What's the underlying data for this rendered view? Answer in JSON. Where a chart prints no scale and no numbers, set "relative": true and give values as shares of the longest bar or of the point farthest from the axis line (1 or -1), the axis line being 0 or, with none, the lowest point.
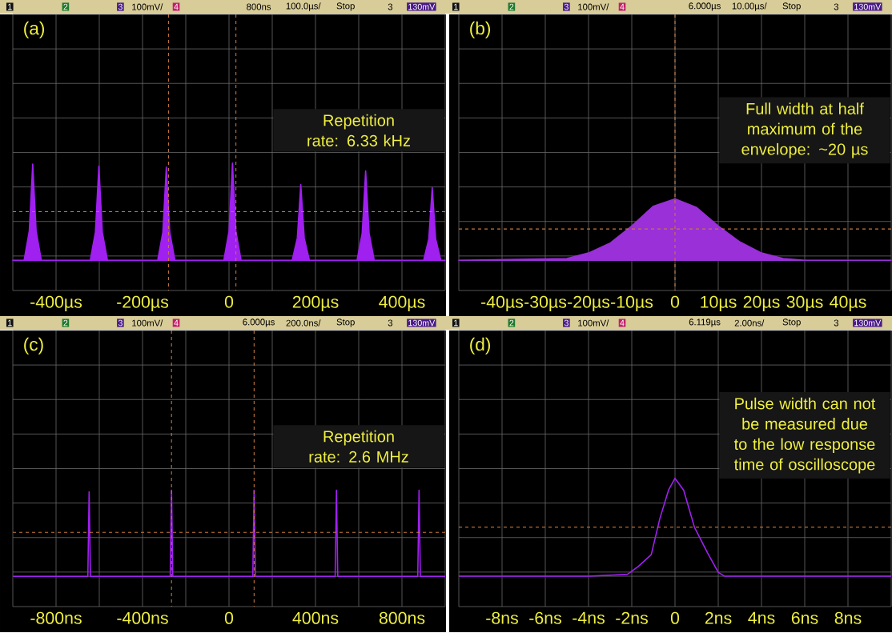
{
  "chart_data": [
    {
      "type": "area",
      "title": "(a)",
      "color": "#a020f0",
      "relative": true,
      "grid": true,
      "x": [
        -500,
        -474,
        -462,
        -454,
        -446,
        -434,
        -321,
        -309,
        -301,
        -293,
        -281,
        -165,
        -153,
        -145,
        -137,
        -125,
        -12,
        0,
        8,
        16,
        28,
        146,
        158,
        166,
        174,
        186,
        296,
        308,
        316,
        324,
        336,
        450,
        462,
        470,
        478,
        490,
        500
      ],
      "values": [
        0,
        0,
        0.3,
        0.99,
        0.3,
        0,
        0,
        0.29,
        0.97,
        0.29,
        0,
        0,
        0.29,
        0.96,
        0.29,
        0,
        0,
        0.3,
        1,
        0.3,
        0,
        0,
        0.23,
        0.78,
        0.23,
        0,
        0,
        0.28,
        0.92,
        0.28,
        0,
        0,
        0.22,
        0.75,
        0.22,
        0,
        0
      ],
      "xlim": [
        -500,
        500
      ],
      "xticks": [
        {
          "value": -400,
          "label": "-400µs"
        },
        {
          "value": -200,
          "label": "-200µs"
        },
        0,
        {
          "value": 200,
          "label": "200µs"
        },
        {
          "value": 400,
          "label": "400µs"
        }
      ],
      "ref_lines": [
        {
          "axis": "y",
          "value": 0.5,
          "color": "#c8783c",
          "line_style": "dashed"
        },
        {
          "axis": "x",
          "value": -140,
          "color": "#c8783c",
          "line_style": "dashed"
        },
        {
          "axis": "x",
          "value": 16,
          "color": "#c8783c",
          "line_style": "dashed"
        }
      ],
      "annotations": [
        "Repetition rate: 6.33 kHz",
        "1",
        "2",
        "3",
        "100mV/",
        "4",
        "800ns",
        "100.0µs/",
        "Stop",
        "3",
        "130mV"
      ]
    },
    {
      "type": "area",
      "title": "(b)",
      "color": "#9a30d8",
      "relative": true,
      "grid": true,
      "x": [
        -50,
        -25,
        -20,
        -15,
        -10,
        -5,
        0,
        5,
        10,
        15,
        20,
        25,
        30,
        50
      ],
      "values": [
        0,
        0.03,
        0.12,
        0.28,
        0.56,
        0.88,
        1,
        0.86,
        0.56,
        0.3,
        0.12,
        0.03,
        0,
        0
      ],
      "xlim": [
        -50,
        50
      ],
      "xticks": [
        {
          "value": -40,
          "label": "-40µs"
        },
        {
          "value": -30,
          "label": "-30µs"
        },
        {
          "value": -20,
          "label": "-20µs"
        },
        {
          "value": -10,
          "label": "-10µs"
        },
        0,
        {
          "value": 10,
          "label": "10µs"
        },
        {
          "value": 20,
          "label": "20µs"
        },
        {
          "value": 30,
          "label": "30µs"
        },
        {
          "value": 40,
          "label": "40µs"
        }
      ],
      "ref_lines": [
        {
          "axis": "y",
          "value": 0.51,
          "color": "#c8783c",
          "line_style": "dashed"
        },
        {
          "axis": "x",
          "value": 0,
          "color": "#c8783c",
          "line_style": "dashed"
        }
      ],
      "annotations": [
        "Full width at half maximum of the envelope: ~20 µs",
        "1",
        "2",
        "3",
        "100mV/",
        "4",
        "6.000µs",
        "10.00µs/",
        "Stop",
        "3",
        "130mV"
      ]
    },
    {
      "type": "line",
      "title": "(c)",
      "color": "#a020f0",
      "relative": true,
      "grid": true,
      "x": [
        -1000,
        -653,
        -647,
        -641,
        -272,
        -266,
        -260,
        110,
        116,
        122,
        491,
        497,
        503,
        873,
        879,
        885,
        1000
      ],
      "values": [
        0,
        0,
        0.98,
        0,
        0,
        1,
        0,
        0,
        1,
        0,
        0,
        1,
        0,
        0,
        1,
        0,
        0
      ],
      "xlim": [
        -1000,
        1000
      ],
      "xticks": [
        {
          "value": -800,
          "label": "-800ns"
        },
        {
          "value": -400,
          "label": "-400ns"
        },
        0,
        {
          "value": 400,
          "label": "400ns"
        },
        {
          "value": 800,
          "label": "800ns"
        }
      ],
      "ref_lines": [
        {
          "axis": "y",
          "value": 0.51,
          "color": "#c8783c",
          "line_style": "dashed"
        },
        {
          "axis": "x",
          "value": -266,
          "color": "#c8783c",
          "line_style": "dashed"
        },
        {
          "axis": "x",
          "value": 116,
          "color": "#c8783c",
          "line_style": "dashed"
        }
      ],
      "annotations": [
        "Repetition rate: 2.6 MHz",
        "1",
        "2",
        "3",
        "100mV/",
        "4",
        "6.000µs",
        "200.0ns/",
        "Stop",
        "3",
        "130mV"
      ]
    },
    {
      "type": "line",
      "title": "(d)",
      "color": "#a020f0",
      "relative": true,
      "grid": true,
      "x": [
        -10,
        -8,
        -6,
        -4,
        -2.2,
        -1.7,
        -1.1,
        -0.7,
        -0.3,
        0,
        0.4,
        0.9,
        1.5,
        2.0,
        2.3,
        4,
        6,
        8,
        10
      ],
      "values": [
        0,
        0,
        0,
        0,
        0.02,
        0.1,
        0.22,
        0.59,
        0.88,
        1,
        0.88,
        0.5,
        0.24,
        0.04,
        0,
        0,
        0,
        0,
        0
      ],
      "xlim": [
        -10,
        10
      ],
      "xticks": [
        {
          "value": -8,
          "label": "-8ns"
        },
        {
          "value": -6,
          "label": "-6ns"
        },
        {
          "value": -4,
          "label": "-4ns"
        },
        {
          "value": -2,
          "label": "-2ns"
        },
        0,
        {
          "value": 2,
          "label": "2ns"
        },
        {
          "value": 4,
          "label": "4ns"
        },
        {
          "value": 6,
          "label": "6ns"
        },
        {
          "value": 8,
          "label": "8ns"
        }
      ],
      "ref_lines": [
        {
          "axis": "y",
          "value": 0.5,
          "color": "#c8783c",
          "line_style": "dashed"
        }
      ],
      "annotations": [
        "Pulse width can not be measured due to the low response time of oscilloscope",
        "1",
        "2",
        "3",
        "100mV/",
        "4",
        "6.119µs",
        "2.00ns/",
        "Stop",
        "3",
        "130mV"
      ]
    }
  ]
}
